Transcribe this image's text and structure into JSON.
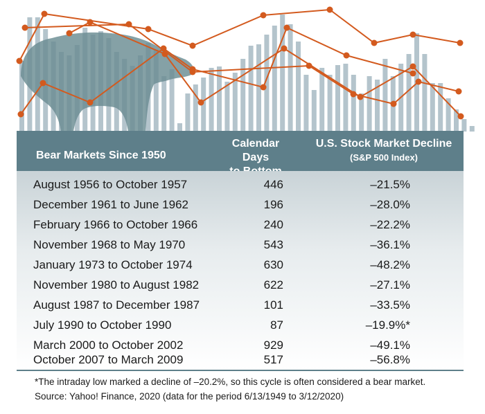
{
  "colors": {
    "header": "#5e7f8a",
    "bar": "#b4c4cc",
    "bear": "#6a8c93",
    "line": "#d35a1e"
  },
  "header": {
    "col1": "Bear Markets Since 1950",
    "col2_line1": "Calendar Days",
    "col2_line2": "to Bottom",
    "col3_line1": "U.S. Stock Market Decline",
    "col3_line2": "(S&P 500 Index)"
  },
  "rows": [
    {
      "period": "August 1956 to October 1957",
      "days": "446",
      "decline": "–21.5%"
    },
    {
      "period": "December 1961 to June 1962",
      "days": "196",
      "decline": "–28.0%"
    },
    {
      "period": "February 1966 to October 1966",
      "days": "240",
      "decline": "–22.2%"
    },
    {
      "period": "November 1968 to May 1970",
      "days": "543",
      "decline": "–36.1%"
    },
    {
      "period": "January 1973 to October 1974",
      "days": "630",
      "decline": "–48.2%"
    },
    {
      "period": "November 1980 to August 1982",
      "days": "622",
      "decline": "–27.1%"
    },
    {
      "period": "August 1987 to December 1987",
      "days": "101",
      "decline": "–33.5%"
    },
    {
      "period": "July 1990 to October 1990",
      "days": "87",
      "decline": "–19.9%*"
    },
    {
      "period": "March 2000 to October 2002",
      "days": "929",
      "decline": "–49.1%"
    },
    {
      "period": "October 2007 to March 2009",
      "days": "517",
      "decline": "–56.8%"
    }
  ],
  "footnote": "*The intraday low marked a decline of –20.2%, so this cycle is often considered a bear market.",
  "source": "Source: Yahoo! Finance, 2020 (data for the period 6/13/1949 to 3/12/2020)"
}
